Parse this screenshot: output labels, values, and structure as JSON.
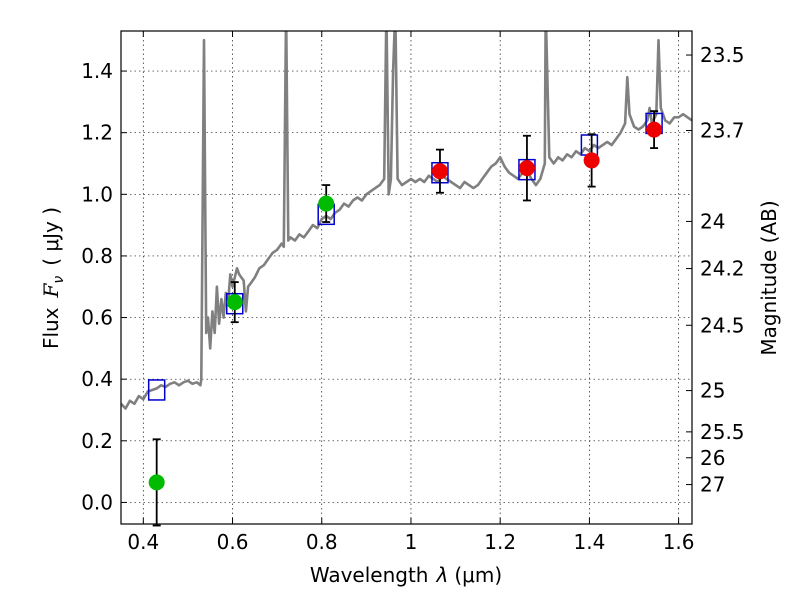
{
  "chart_data": {
    "type": "scatter",
    "x_axis": {
      "label_prefix": "Wavelength",
      "label_var": "λ",
      "label_unit": "(μm)",
      "range": [
        0.35,
        1.63
      ],
      "ticks": [
        0.4,
        0.6,
        0.8,
        1.0,
        1.2,
        1.4,
        1.6
      ],
      "tick_labels": [
        "0.4",
        "0.6",
        "0.8",
        "1",
        "1.2",
        "1.4",
        "1.6"
      ]
    },
    "y_axis": {
      "label_prefix": "Flux",
      "label_var": "F",
      "label_sub": "ν",
      "label_unit": "( μJy )",
      "range": [
        -0.07,
        1.53
      ],
      "ticks": [
        0.0,
        0.2,
        0.4,
        0.6,
        0.8,
        1.0,
        1.2,
        1.4
      ],
      "tick_labels": [
        "0.0",
        "0.2",
        "0.4",
        "0.6",
        "0.8",
        "1.0",
        "1.2",
        "1.4"
      ]
    },
    "y2_axis": {
      "label": "Magnitude (AB)",
      "ticks": [
        {
          "flux": 1.452,
          "label": "23.5"
        },
        {
          "flux": 1.207,
          "label": "23.7"
        },
        {
          "flux": 0.912,
          "label": "24"
        },
        {
          "flux": 0.759,
          "label": "24.2"
        },
        {
          "flux": 0.575,
          "label": "24.5"
        },
        {
          "flux": 0.363,
          "label": "25"
        },
        {
          "flux": 0.229,
          "label": "25.5"
        },
        {
          "flux": 0.145,
          "label": "26"
        },
        {
          "flux": 0.058,
          "label": "27"
        }
      ]
    },
    "grid": true,
    "model_spectrum": {
      "color": "#808080",
      "points": [
        [
          0.35,
          0.32
        ],
        [
          0.36,
          0.305
        ],
        [
          0.37,
          0.33
        ],
        [
          0.38,
          0.32
        ],
        [
          0.39,
          0.345
        ],
        [
          0.4,
          0.335
        ],
        [
          0.41,
          0.36
        ],
        [
          0.42,
          0.365
        ],
        [
          0.43,
          0.37
        ],
        [
          0.44,
          0.38
        ],
        [
          0.45,
          0.375
        ],
        [
          0.46,
          0.385
        ],
        [
          0.47,
          0.39
        ],
        [
          0.48,
          0.38
        ],
        [
          0.49,
          0.39
        ],
        [
          0.5,
          0.395
        ],
        [
          0.51,
          0.385
        ],
        [
          0.52,
          0.39
        ],
        [
          0.528,
          0.38
        ],
        [
          0.53,
          0.4
        ],
        [
          0.536,
          1.5
        ],
        [
          0.541,
          0.55
        ],
        [
          0.545,
          0.6
        ],
        [
          0.55,
          0.5
        ],
        [
          0.555,
          0.62
        ],
        [
          0.56,
          0.55
        ],
        [
          0.565,
          0.7
        ],
        [
          0.57,
          0.58
        ],
        [
          0.575,
          0.66
        ],
        [
          0.58,
          0.6
        ],
        [
          0.585,
          0.68
        ],
        [
          0.59,
          0.65
        ],
        [
          0.595,
          0.74
        ],
        [
          0.6,
          0.7
        ],
        [
          0.61,
          0.76
        ],
        [
          0.615,
          0.74
        ],
        [
          0.62,
          0.73
        ],
        [
          0.625,
          0.72
        ],
        [
          0.63,
          0.62
        ],
        [
          0.635,
          0.7
        ],
        [
          0.64,
          0.71
        ],
        [
          0.65,
          0.73
        ],
        [
          0.66,
          0.76
        ],
        [
          0.67,
          0.77
        ],
        [
          0.68,
          0.79
        ],
        [
          0.69,
          0.81
        ],
        [
          0.7,
          0.82
        ],
        [
          0.71,
          0.84
        ],
        [
          0.715,
          0.83
        ],
        [
          0.72,
          1.6
        ],
        [
          0.725,
          0.85
        ],
        [
          0.73,
          0.86
        ],
        [
          0.74,
          0.85
        ],
        [
          0.75,
          0.87
        ],
        [
          0.76,
          0.86
        ],
        [
          0.77,
          0.88
        ],
        [
          0.78,
          0.9
        ],
        [
          0.79,
          0.89
        ],
        [
          0.8,
          0.92
        ],
        [
          0.81,
          0.93
        ],
        [
          0.82,
          0.92
        ],
        [
          0.83,
          0.94
        ],
        [
          0.84,
          0.95
        ],
        [
          0.85,
          0.97
        ],
        [
          0.86,
          0.96
        ],
        [
          0.87,
          0.98
        ],
        [
          0.88,
          0.99
        ],
        [
          0.89,
          0.98
        ],
        [
          0.9,
          1.0
        ],
        [
          0.91,
          1.01
        ],
        [
          0.92,
          1.02
        ],
        [
          0.93,
          1.03
        ],
        [
          0.94,
          1.05
        ],
        [
          0.945,
          1.6
        ],
        [
          0.95,
          1.0
        ],
        [
          0.955,
          1.05
        ],
        [
          0.96,
          1.4
        ],
        [
          0.965,
          1.6
        ],
        [
          0.97,
          1.05
        ],
        [
          0.98,
          1.03
        ],
        [
          0.99,
          1.04
        ],
        [
          1.0,
          1.05
        ],
        [
          1.01,
          1.04
        ],
        [
          1.02,
          1.05
        ],
        [
          1.03,
          1.04
        ],
        [
          1.04,
          1.06
        ],
        [
          1.05,
          1.05
        ],
        [
          1.06,
          1.04
        ],
        [
          1.07,
          1.06
        ],
        [
          1.08,
          1.05
        ],
        [
          1.09,
          1.04
        ],
        [
          1.1,
          1.03
        ],
        [
          1.11,
          1.02
        ],
        [
          1.12,
          1.04
        ],
        [
          1.13,
          1.03
        ],
        [
          1.14,
          1.02
        ],
        [
          1.15,
          1.03
        ],
        [
          1.16,
          1.05
        ],
        [
          1.17,
          1.07
        ],
        [
          1.18,
          1.09
        ],
        [
          1.19,
          1.1
        ],
        [
          1.2,
          1.12
        ],
        [
          1.21,
          1.09
        ],
        [
          1.22,
          1.07
        ],
        [
          1.23,
          1.06
        ],
        [
          1.24,
          1.05
        ],
        [
          1.25,
          1.07
        ],
        [
          1.26,
          1.08
        ],
        [
          1.27,
          1.05
        ],
        [
          1.28,
          1.03
        ],
        [
          1.29,
          1.05
        ],
        [
          1.3,
          1.1
        ],
        [
          1.302,
          1.6
        ],
        [
          1.31,
          1.12
        ],
        [
          1.32,
          1.1
        ],
        [
          1.33,
          1.12
        ],
        [
          1.34,
          1.11
        ],
        [
          1.35,
          1.13
        ],
        [
          1.36,
          1.12
        ],
        [
          1.37,
          1.14
        ],
        [
          1.38,
          1.13
        ],
        [
          1.39,
          1.15
        ],
        [
          1.4,
          1.14
        ],
        [
          1.41,
          1.16
        ],
        [
          1.42,
          1.15
        ],
        [
          1.43,
          1.16
        ],
        [
          1.44,
          1.17
        ],
        [
          1.45,
          1.16
        ],
        [
          1.46,
          1.18
        ],
        [
          1.47,
          1.2
        ],
        [
          1.48,
          1.23
        ],
        [
          1.485,
          1.38
        ],
        [
          1.49,
          1.26
        ],
        [
          1.5,
          1.22
        ],
        [
          1.51,
          1.21
        ],
        [
          1.52,
          1.22
        ],
        [
          1.53,
          1.24
        ],
        [
          1.535,
          1.28
        ],
        [
          1.54,
          1.23
        ],
        [
          1.55,
          1.26
        ],
        [
          1.555,
          1.5
        ],
        [
          1.56,
          1.28
        ],
        [
          1.57,
          1.24
        ],
        [
          1.58,
          1.23
        ],
        [
          1.59,
          1.25
        ],
        [
          1.6,
          1.25
        ],
        [
          1.61,
          1.26
        ],
        [
          1.62,
          1.25
        ],
        [
          1.63,
          1.24
        ]
      ]
    },
    "model_boxes": {
      "color": "#0000cc",
      "points": [
        [
          0.43,
          0.365
        ],
        [
          0.605,
          0.645
        ],
        [
          0.81,
          0.935
        ],
        [
          1.065,
          1.07
        ],
        [
          1.26,
          1.08
        ],
        [
          1.4,
          1.16
        ],
        [
          1.545,
          1.23
        ]
      ]
    },
    "observed_optical": {
      "color": "#00bb00",
      "points": [
        {
          "x": 0.43,
          "y": 0.065,
          "err": 0.14
        },
        {
          "x": 0.605,
          "y": 0.65,
          "err": 0.065
        },
        {
          "x": 0.81,
          "y": 0.97,
          "err": 0.06
        }
      ]
    },
    "observed_nir": {
      "color": "#ee0000",
      "points": [
        {
          "x": 1.065,
          "y": 1.075,
          "err": 0.07
        },
        {
          "x": 1.26,
          "y": 1.085,
          "err": 0.105
        },
        {
          "x": 1.405,
          "y": 1.11,
          "err": 0.085
        },
        {
          "x": 1.545,
          "y": 1.21,
          "err": 0.06
        }
      ]
    }
  }
}
